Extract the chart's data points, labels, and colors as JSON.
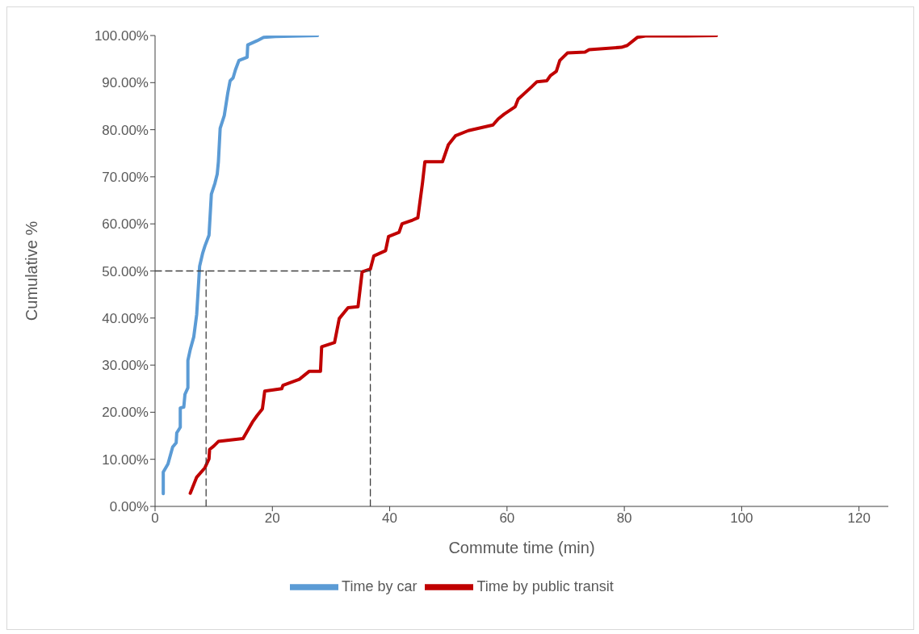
{
  "chart_data": {
    "type": "line",
    "xlabel": "Commute time (min)",
    "ylabel": "Cumulative %",
    "xlim": [
      0,
      125
    ],
    "xticks": [
      0,
      20,
      40,
      60,
      80,
      100,
      120
    ],
    "ylim": [
      0,
      100
    ],
    "yticks": [
      {
        "value": 0,
        "label": "0.00%"
      },
      {
        "value": 10,
        "label": "10.00%"
      },
      {
        "value": 20,
        "label": "20.00%"
      },
      {
        "value": 30,
        "label": "30.00%"
      },
      {
        "value": 40,
        "label": "40.00%"
      },
      {
        "value": 50,
        "label": "50.00%"
      },
      {
        "value": 60,
        "label": "60.00%"
      },
      {
        "value": 70,
        "label": "70.00%"
      },
      {
        "value": 80,
        "label": "80.00%"
      },
      {
        "value": 90,
        "label": "90.00%"
      },
      {
        "value": 100,
        "label": "100.00%"
      }
    ],
    "grid": false,
    "legend": "bottom",
    "marker": "none",
    "line_style": "solid",
    "series": [
      {
        "name": "Time by car",
        "color": "#5b9bd5",
        "x": [
          1.4,
          1.4,
          2.2,
          3.0,
          3.6,
          3.7,
          4.3,
          4.3,
          4.9,
          5.1,
          5.6,
          5.6,
          6.0,
          6.6,
          7.1,
          7.6,
          8.1,
          8.5,
          9.2,
          9.6,
          10.2,
          10.6,
          10.8,
          11.1,
          11.8,
          12.4,
          12.8,
          13.3,
          13.7,
          14.3,
          15.7,
          15.8,
          17.4,
          18.5,
          20.5,
          27.7
        ],
        "values": [
          2.7,
          7.3,
          9,
          12.6,
          13.5,
          15.6,
          16.8,
          20.9,
          21.1,
          23.8,
          25.2,
          31,
          33.3,
          36,
          40.8,
          51,
          53.7,
          55.3,
          57.6,
          66.3,
          68.6,
          70.6,
          73.2,
          80.3,
          83,
          87.8,
          90.4,
          91,
          92.7,
          94.7,
          95.4,
          98,
          98.9,
          99.6,
          99.8,
          100
        ]
      },
      {
        "name": "Time by public transit",
        "color": "#c00000",
        "x": [
          6.0,
          7.1,
          8.5,
          9.2,
          9.3,
          10.0,
          10.8,
          15.0,
          16.6,
          17.4,
          18.3,
          18.7,
          21.6,
          21.8,
          24.6,
          26.3,
          28.2,
          28.4,
          30.6,
          31.4,
          32.9,
          34.6,
          35.3,
          36.7,
          37.3,
          39.3,
          39.8,
          41.6,
          42.1,
          43.9,
          44.8,
          45.6,
          46.0,
          49.0,
          50.0,
          51.2,
          53.4,
          57.6,
          58.5,
          59.5,
          61.4,
          61.9,
          64.1,
          65.1,
          66.8,
          67.4,
          68.4,
          69.0,
          70.3,
          73.3,
          74.0,
          79.5,
          80.5,
          82.2,
          83.6,
          90.5,
          95.7
        ],
        "values": [
          2.8,
          6.2,
          8.2,
          10.1,
          12.1,
          12.8,
          13.8,
          14.4,
          17.9,
          19.3,
          20.7,
          24.5,
          25,
          25.7,
          27,
          28.7,
          28.7,
          33.9,
          34.8,
          39.9,
          42.2,
          42.4,
          49.8,
          50.4,
          53.2,
          54.3,
          57.3,
          58.2,
          60,
          60.8,
          61.3,
          68.8,
          73.2,
          73.2,
          76.8,
          78.7,
          79.8,
          81,
          82.3,
          83.3,
          84.9,
          86.5,
          89,
          90.2,
          90.4,
          91.5,
          92.4,
          94.7,
          96.3,
          96.5,
          97,
          97.5,
          97.9,
          99.6,
          99.9,
          99.9,
          100
        ]
      },
      {
        "color": "#404040",
        "line_style": "dashed",
        "x": [
          0,
          36.7
        ],
        "values": [
          50,
          50
        ]
      },
      {
        "color": "#404040",
        "line_style": "dashed",
        "x": [
          8.7,
          8.7
        ],
        "values": [
          0,
          50
        ]
      },
      {
        "color": "#404040",
        "line_style": "dashed",
        "x": [
          36.7,
          36.7
        ],
        "values": [
          0,
          50
        ]
      }
    ]
  }
}
